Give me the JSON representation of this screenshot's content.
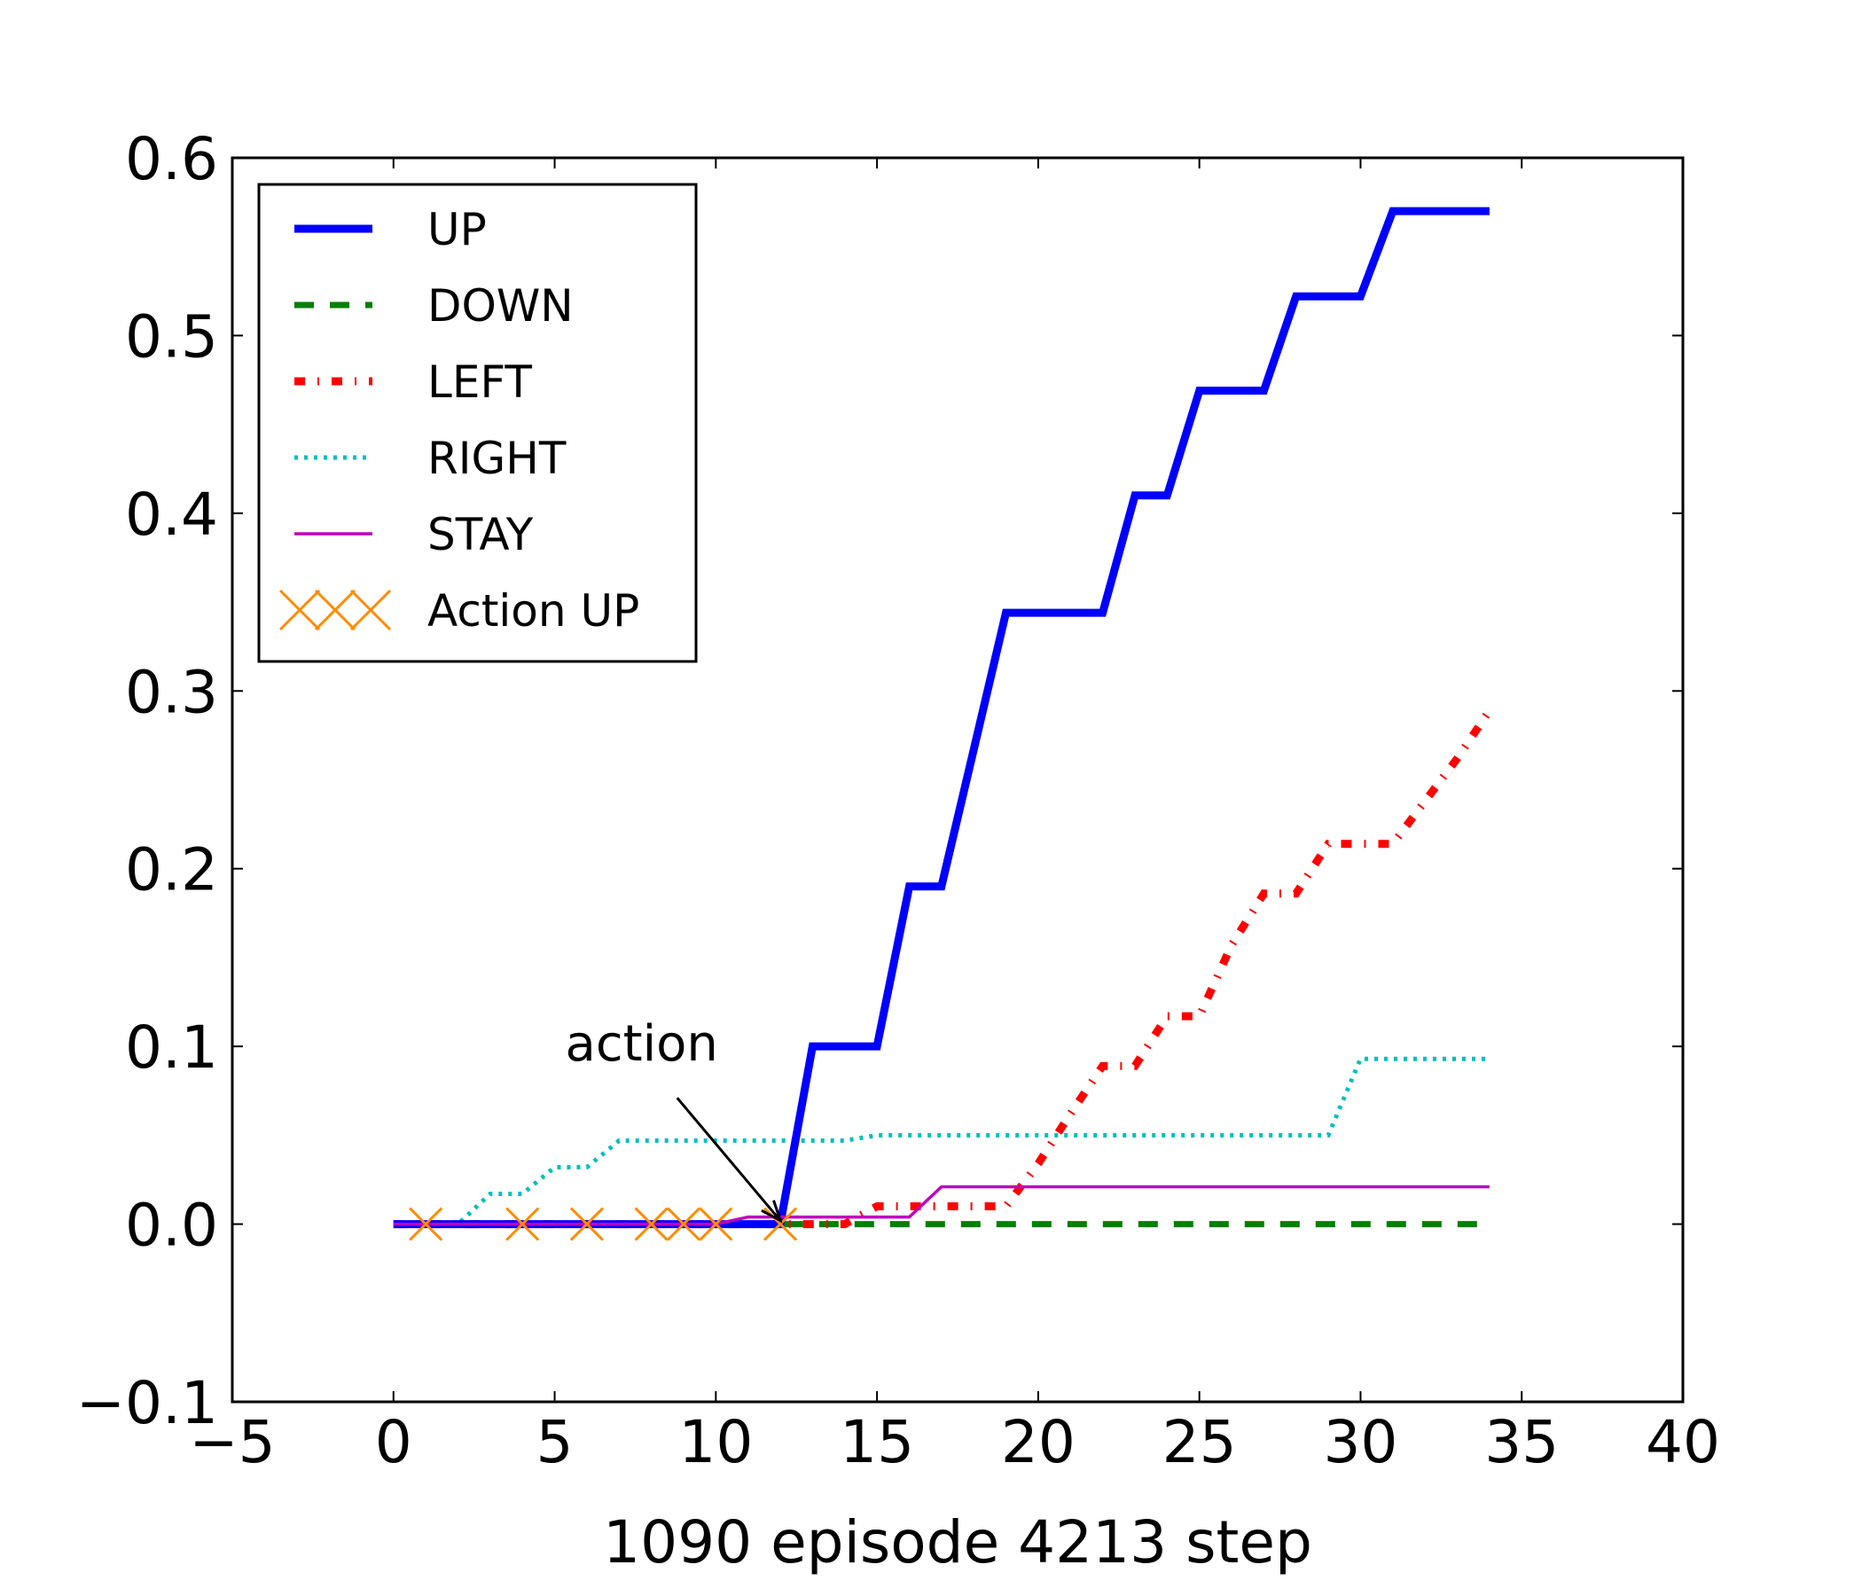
{
  "chart_data": {
    "type": "line",
    "title": "",
    "xlabel": "1090 episode 4213 step",
    "ylabel": "",
    "xlim": [
      -5,
      40
    ],
    "ylim": [
      -0.1,
      0.6
    ],
    "xticks": [
      -5,
      0,
      5,
      10,
      15,
      20,
      25,
      30,
      35,
      40
    ],
    "xtick_labels": [
      "−5",
      "0",
      "5",
      "10",
      "15",
      "20",
      "25",
      "30",
      "35",
      "40"
    ],
    "yticks": [
      -0.1,
      0.0,
      0.1,
      0.2,
      0.3,
      0.4,
      0.5,
      0.6
    ],
    "ytick_labels": [
      "−0.1",
      "0.0",
      "0.1",
      "0.2",
      "0.3",
      "0.4",
      "0.5",
      "0.6"
    ],
    "grid": false,
    "legend_position": "top-left",
    "series": [
      {
        "name": "UP",
        "color": "#0000ff",
        "style": "solid-thick",
        "x": [
          0,
          1,
          2,
          3,
          4,
          5,
          6,
          7,
          8,
          9,
          10,
          11,
          12,
          13,
          14,
          15,
          16,
          17,
          18,
          19,
          20,
          21,
          22,
          23,
          24,
          25,
          26,
          27,
          28,
          29,
          30,
          31,
          32,
          33,
          34
        ],
        "y": [
          0,
          0,
          0,
          0,
          0,
          0,
          0,
          0,
          0,
          0,
          0,
          0,
          0,
          0.1,
          0.1,
          0.1,
          0.19,
          0.19,
          0.267,
          0.344,
          0.344,
          0.344,
          0.344,
          0.41,
          0.41,
          0.469,
          0.469,
          0.469,
          0.522,
          0.522,
          0.522,
          0.57,
          0.57,
          0.57,
          0.57
        ]
      },
      {
        "name": "DOWN",
        "color": "#008000",
        "style": "dashed",
        "x": [
          0,
          1,
          2,
          3,
          4,
          5,
          6,
          7,
          8,
          9,
          10,
          11,
          12,
          13,
          14,
          15,
          16,
          17,
          18,
          19,
          20,
          21,
          22,
          23,
          24,
          25,
          26,
          27,
          28,
          29,
          30,
          31,
          32,
          33,
          34
        ],
        "y": [
          0,
          0,
          0,
          0,
          0,
          0,
          0,
          0,
          0,
          0,
          0,
          0,
          0,
          0,
          0,
          0,
          0,
          0,
          0,
          0,
          0,
          0,
          0,
          0,
          0,
          0,
          0,
          0,
          0,
          0,
          0,
          0,
          0,
          0,
          0
        ]
      },
      {
        "name": "LEFT",
        "color": "#ff0000",
        "style": "dashdot",
        "x": [
          0,
          1,
          2,
          3,
          4,
          5,
          6,
          7,
          8,
          9,
          10,
          11,
          12,
          13,
          14,
          15,
          16,
          17,
          18,
          19,
          20,
          21,
          22,
          23,
          24,
          25,
          26,
          27,
          28,
          29,
          30,
          31,
          32,
          33,
          34
        ],
        "y": [
          0,
          0,
          0,
          0,
          0,
          0,
          0,
          0,
          0,
          0,
          0,
          0,
          0,
          0,
          0,
          0.01,
          0.01,
          0.01,
          0.01,
          0.01,
          0.034,
          0.062,
          0.089,
          0.089,
          0.117,
          0.117,
          0.157,
          0.186,
          0.186,
          0.214,
          0.214,
          0.214,
          0.238,
          0.262,
          0.289
        ]
      },
      {
        "name": "RIGHT",
        "color": "#00bfbf",
        "style": "dotted",
        "x": [
          0,
          1,
          2,
          3,
          4,
          5,
          6,
          7,
          8,
          9,
          10,
          11,
          12,
          13,
          14,
          15,
          16,
          17,
          18,
          19,
          20,
          21,
          22,
          23,
          24,
          25,
          26,
          27,
          28,
          29,
          30,
          31,
          32,
          33,
          34
        ],
        "y": [
          0,
          0,
          0,
          0.017,
          0.017,
          0.032,
          0.032,
          0.047,
          0.047,
          0.047,
          0.047,
          0.047,
          0.047,
          0.047,
          0.047,
          0.05,
          0.05,
          0.05,
          0.05,
          0.05,
          0.05,
          0.05,
          0.05,
          0.05,
          0.05,
          0.05,
          0.05,
          0.05,
          0.05,
          0.05,
          0.093,
          0.093,
          0.093,
          0.093,
          0.093
        ]
      },
      {
        "name": "STAY",
        "color": "#bf00bf",
        "style": "solid-thin",
        "x": [
          0,
          1,
          2,
          3,
          4,
          5,
          6,
          7,
          8,
          9,
          10,
          11,
          12,
          13,
          14,
          15,
          16,
          17,
          18,
          19,
          20,
          21,
          22,
          23,
          24,
          25,
          26,
          27,
          28,
          29,
          30,
          31,
          32,
          33,
          34
        ],
        "y": [
          0,
          0,
          0,
          0,
          0,
          0,
          0,
          0,
          0,
          0,
          0,
          0.004,
          0.004,
          0.004,
          0.004,
          0.004,
          0.004,
          0.021,
          0.021,
          0.021,
          0.021,
          0.021,
          0.021,
          0.021,
          0.021,
          0.021,
          0.021,
          0.021,
          0.021,
          0.021,
          0.021,
          0.021,
          0.021,
          0.021,
          0.021
        ]
      },
      {
        "name": "Action UP",
        "color": "#ff8c00",
        "style": "x-markers",
        "x": [
          1,
          4,
          6,
          8,
          9,
          10,
          12
        ],
        "y": [
          0,
          0,
          0,
          0,
          0,
          0,
          0
        ]
      }
    ],
    "annotations": [
      {
        "text": "action",
        "text_x": 7.7,
        "text_y": 0.092,
        "arrow_to_x": 12,
        "arrow_to_y": 0.002
      }
    ]
  }
}
